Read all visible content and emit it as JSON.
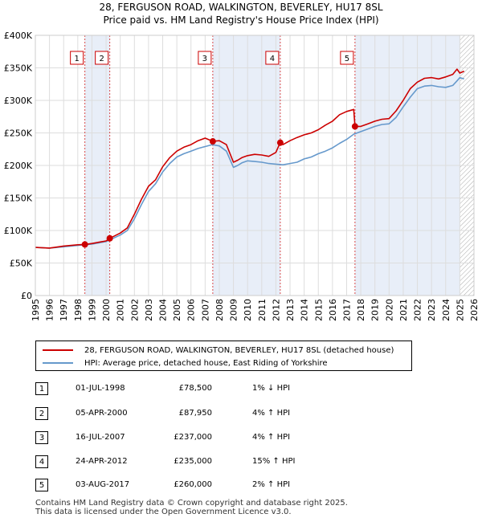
{
  "title_line1": "28, FERGUSON ROAD, WALKINGTON, BEVERLEY, HU17 8SL",
  "title_line2": "Price paid vs. HM Land Registry's House Price Index (HPI)",
  "colors": {
    "property": "#cc0000",
    "hpi": "#6699cc",
    "shade": "#e8eef8",
    "marker_border": "#cc0000"
  },
  "chart_data": {
    "type": "line",
    "title": "Price paid vs. HM Land Registry's House Price Index (HPI)",
    "xlabel": "",
    "ylabel": "",
    "xlim": [
      1995,
      2026
    ],
    "ylim": [
      0,
      400000
    ],
    "y_ticks": [
      0,
      50000,
      100000,
      150000,
      200000,
      250000,
      300000,
      350000,
      400000
    ],
    "y_tick_labels": [
      "£0",
      "£50K",
      "£100K",
      "£150K",
      "£200K",
      "£250K",
      "£300K",
      "£350K",
      "£400K"
    ],
    "x_ticks": [
      1995,
      1996,
      1997,
      1998,
      1999,
      2000,
      2001,
      2002,
      2003,
      2004,
      2005,
      2006,
      2007,
      2008,
      2009,
      2010,
      2011,
      2012,
      2013,
      2014,
      2015,
      2016,
      2017,
      2018,
      2019,
      2020,
      2021,
      2022,
      2023,
      2024,
      2025,
      2026
    ],
    "x_tick_labels": [
      "1995",
      "1996",
      "1997",
      "1998",
      "1999",
      "2000",
      "2001",
      "2002",
      "2003",
      "2004",
      "2005",
      "2006",
      "2007",
      "2008",
      "2009",
      "2010",
      "2011",
      "2012",
      "2013",
      "2014",
      "2015",
      "2016",
      "2017",
      "2018",
      "2019",
      "2020",
      "2021",
      "2022",
      "2023",
      "2024",
      "2025",
      "2026"
    ],
    "shaded_ranges": [
      [
        1998.5,
        2000.26
      ],
      [
        2007.54,
        2012.31
      ],
      [
        2017.59,
        2025.0
      ]
    ],
    "future_hatch_start": 2025.0,
    "sale_markers": [
      {
        "label": "1",
        "x": 1998.5,
        "y": 78500
      },
      {
        "label": "2",
        "x": 2000.26,
        "y": 87950
      },
      {
        "label": "3",
        "x": 2007.54,
        "y": 237000
      },
      {
        "label": "4",
        "x": 2012.31,
        "y": 235000
      },
      {
        "label": "5",
        "x": 2017.59,
        "y": 260000
      }
    ],
    "series": [
      {
        "name": "28, FERGUSON ROAD, WALKINGTON, BEVERLEY, HU17 8SL (detached house)",
        "color": "#cc0000",
        "x": [
          1995,
          1996,
          1997,
          1998,
          1998.5,
          1999,
          2000,
          2000.26,
          2001,
          2001.5,
          2002,
          2002.5,
          2003,
          2003.5,
          2004,
          2004.5,
          2005,
          2005.5,
          2006,
          2006.5,
          2007,
          2007.54,
          2008,
          2008.5,
          2009,
          2009.3,
          2009.6,
          2010,
          2010.5,
          2011,
          2011.5,
          2012,
          2012.3,
          2012.5,
          2013,
          2013.5,
          2014,
          2014.5,
          2015,
          2015.5,
          2016,
          2016.5,
          2017,
          2017.5,
          2017.59,
          2018,
          2018.5,
          2019,
          2019.5,
          2020,
          2020.5,
          2021,
          2021.5,
          2022,
          2022.5,
          2023,
          2023.5,
          2024,
          2024.5,
          2024.8,
          2025,
          2025.3
        ],
        "y": [
          74000,
          73000,
          76000,
          78000,
          78500,
          80000,
          84000,
          87950,
          96000,
          104000,
          125000,
          148000,
          168000,
          178000,
          198000,
          212000,
          222000,
          228000,
          232000,
          238000,
          242000,
          237000,
          238000,
          232000,
          205000,
          208000,
          212000,
          215000,
          217000,
          216000,
          214000,
          220000,
          235000,
          232000,
          238000,
          243000,
          247000,
          250000,
          255000,
          262000,
          268000,
          278000,
          283000,
          286000,
          260000,
          260000,
          264000,
          268000,
          271000,
          272000,
          284000,
          300000,
          318000,
          328000,
          334000,
          335000,
          333000,
          336000,
          340000,
          348000,
          342000,
          345000
        ]
      },
      {
        "name": "HPI: Average price, detached house, East Riding of Yorkshire",
        "color": "#6699cc",
        "x": [
          1995,
          1996,
          1997,
          1998,
          1999,
          2000,
          2001,
          2001.5,
          2002,
          2002.5,
          2003,
          2003.5,
          2004,
          2004.5,
          2005,
          2005.5,
          2006,
          2006.5,
          2007,
          2007.5,
          2008,
          2008.5,
          2009,
          2009.3,
          2009.6,
          2010,
          2010.5,
          2011,
          2011.5,
          2012,
          2012.5,
          2013,
          2013.5,
          2014,
          2014.5,
          2015,
          2015.5,
          2016,
          2016.5,
          2017,
          2017.5,
          2018,
          2018.5,
          2019,
          2019.5,
          2020,
          2020.5,
          2021,
          2021.5,
          2022,
          2022.5,
          2023,
          2023.5,
          2024,
          2024.5,
          2024.8,
          2025,
          2025.3
        ],
        "y": [
          74000,
          73000,
          75000,
          77000,
          79000,
          83000,
          93000,
          100000,
          118000,
          140000,
          160000,
          172000,
          190000,
          203000,
          213000,
          218000,
          222000,
          226000,
          229000,
          232000,
          230000,
          222000,
          197000,
          200000,
          204000,
          207000,
          206000,
          205000,
          203000,
          202000,
          201000,
          203000,
          205000,
          210000,
          213000,
          218000,
          222000,
          227000,
          234000,
          240000,
          248000,
          252000,
          256000,
          260000,
          263000,
          264000,
          274000,
          290000,
          305000,
          318000,
          322000,
          323000,
          321000,
          320000,
          323000,
          330000,
          335000,
          333000
        ]
      }
    ]
  },
  "legend": {
    "property_label": "28, FERGUSON ROAD, WALKINGTON, BEVERLEY, HU17 8SL (detached house)",
    "hpi_label": "HPI: Average price, detached house, East Riding of Yorkshire"
  },
  "transactions": [
    {
      "num": "1",
      "date": "01-JUL-1998",
      "price": "£78,500",
      "hpi": "1% ↓ HPI"
    },
    {
      "num": "2",
      "date": "05-APR-2000",
      "price": "£87,950",
      "hpi": "4% ↑ HPI"
    },
    {
      "num": "3",
      "date": "16-JUL-2007",
      "price": "£237,000",
      "hpi": "4% ↑ HPI"
    },
    {
      "num": "4",
      "date": "24-APR-2012",
      "price": "£235,000",
      "hpi": "15% ↑ HPI"
    },
    {
      "num": "5",
      "date": "03-AUG-2017",
      "price": "£260,000",
      "hpi": "2% ↑ HPI"
    }
  ],
  "footer_line1": "Contains HM Land Registry data © Crown copyright and database right 2025.",
  "footer_line2": "This data is licensed under the Open Government Licence v3.0."
}
